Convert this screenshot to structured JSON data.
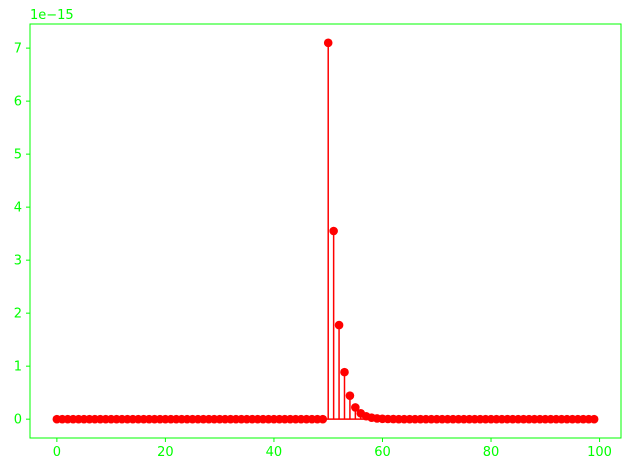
{
  "colors": {
    "axes": "#00ff00",
    "tick_text": "#00ff00",
    "series": "#ff0000",
    "background": "#ffffff"
  },
  "chart_data": {
    "type": "stem",
    "title": "",
    "xlabel": "",
    "ylabel": "",
    "y_offset_label": "1e−15",
    "y_scale_exponent": -15,
    "xlim": [
      -4.95,
      103.95
    ],
    "ylim": [
      -0.355,
      7.455
    ],
    "xticks": [
      0,
      20,
      40,
      60,
      80,
      100
    ],
    "yticks": [
      0,
      1,
      2,
      3,
      4,
      5,
      6,
      7
    ],
    "grid": false,
    "legend": "none",
    "baseline": 0,
    "x_start": 0,
    "values": [
      0,
      0,
      0,
      0,
      0,
      0,
      0,
      0,
      0,
      0,
      0,
      0,
      0,
      0,
      0,
      0,
      0,
      0,
      0,
      0,
      0,
      0,
      0,
      0,
      0,
      0,
      0,
      0,
      0,
      0,
      0,
      0,
      0,
      0,
      0,
      0,
      0,
      0,
      0,
      0,
      0,
      0,
      0,
      0,
      0,
      0,
      0,
      0,
      0,
      0,
      7.1,
      3.55,
      1.775,
      0.8875,
      0.44375,
      0.221875,
      0.1109375,
      0.05546875,
      0.027734375,
      0.0138671875,
      0.00693359375,
      0.003466796875,
      0.0017333984375,
      0,
      0,
      0,
      0,
      0,
      0,
      0,
      0,
      0,
      0,
      0,
      0,
      0,
      0,
      0,
      0,
      0,
      0,
      0,
      0,
      0,
      0,
      0,
      0,
      0,
      0,
      0,
      0,
      0,
      0,
      0,
      0,
      0,
      0,
      0,
      0,
      0
    ]
  }
}
